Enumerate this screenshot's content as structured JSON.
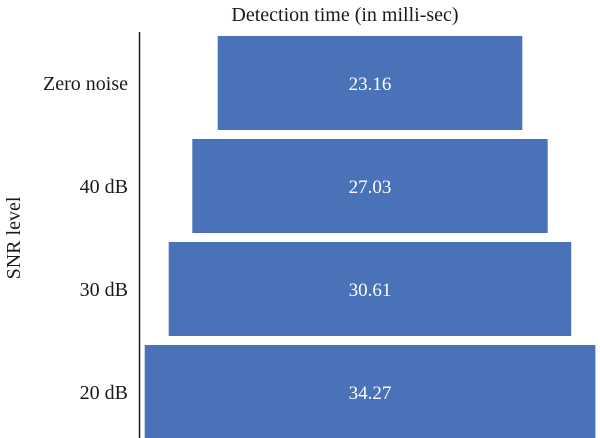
{
  "chart_data": {
    "type": "bar",
    "orientation": "horizontal",
    "title": "Detection time (in milli-sec)",
    "ylabel": "SNR level",
    "xlabel": "",
    "categories": [
      "Zero noise",
      "40 dB",
      "30 dB",
      "20 dB"
    ],
    "values": [
      23.16,
      27.03,
      30.61,
      34.27
    ],
    "data_labels": [
      "23.16",
      "27.03",
      "30.61",
      "34.27"
    ],
    "bar_alignment": "centered",
    "bar_color": "#4a72b8",
    "label_color": "#ffffff",
    "grid": false,
    "legend": "none"
  }
}
